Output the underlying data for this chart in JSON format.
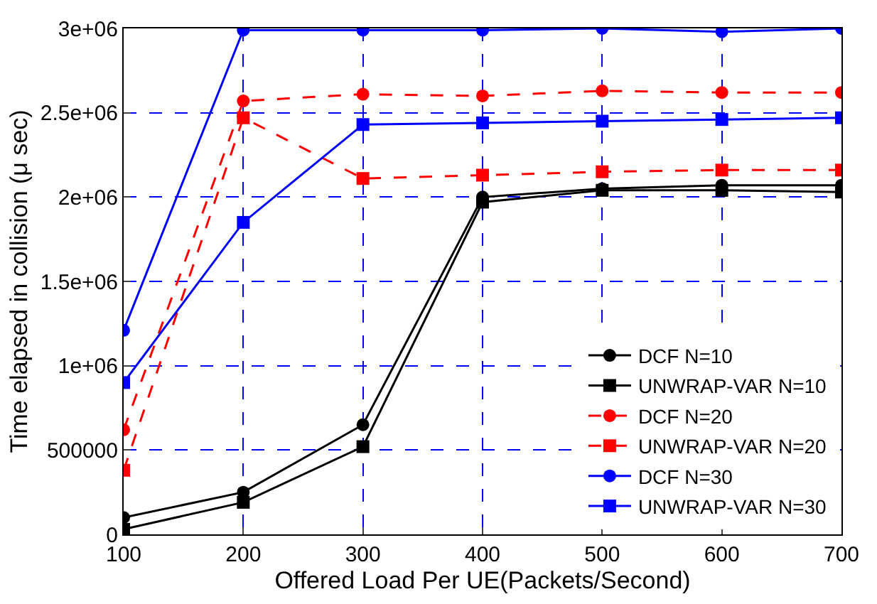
{
  "chart_data": {
    "type": "line",
    "xlabel": "Offered Load Per UE(Packets/Second)",
    "ylabel": "Time elapsed in collision (μ sec)",
    "x": [
      100,
      200,
      300,
      400,
      500,
      600,
      700
    ],
    "xlim": [
      100,
      700
    ],
    "xticks": [
      100,
      200,
      300,
      400,
      500,
      600,
      700
    ],
    "ylim": [
      0,
      3000000
    ],
    "yticks": [
      0,
      500000,
      {
        "value": 1000000,
        "label": "1e+06"
      },
      {
        "value": 1500000,
        "label": "1.5e+06"
      },
      {
        "value": 2000000,
        "label": "2e+06"
      },
      {
        "value": 2500000,
        "label": "2.5e+06"
      },
      {
        "value": 3000000,
        "label": "3e+06"
      }
    ],
    "grid": true,
    "legend": "bottom right",
    "series": [
      {
        "name": "DCF N=10",
        "color": "#000000",
        "marker": "circle",
        "line_style": "solid",
        "values": [
          100000,
          250000,
          650000,
          2000000,
          2050000,
          2070000,
          2070000
        ]
      },
      {
        "name": "UNWRAP-VAR N=10",
        "color": "#000000",
        "marker": "square",
        "line_style": "solid",
        "values": [
          30000,
          190000,
          520000,
          1970000,
          2040000,
          2040000,
          2030000
        ]
      },
      {
        "name": "DCF N=20",
        "color": "#ff0000",
        "marker": "circle",
        "line_style": "dashed",
        "values": [
          620000,
          2570000,
          2610000,
          2600000,
          2630000,
          2620000,
          2620000
        ]
      },
      {
        "name": "UNWRAP-VAR N=20",
        "color": "#ff0000",
        "marker": "square",
        "line_style": "dashed",
        "values": [
          380000,
          2470000,
          2110000,
          2130000,
          2150000,
          2160000,
          2160000
        ]
      },
      {
        "name": "DCF N=30",
        "color": "#0000ff",
        "marker": "circle",
        "line_style": "solid",
        "values": [
          1210000,
          2990000,
          2990000,
          2990000,
          3000000,
          2980000,
          3000000
        ]
      },
      {
        "name": "UNWRAP-VAR N=30",
        "color": "#0000ff",
        "marker": "square",
        "line_style": "solid",
        "values": [
          900000,
          1850000,
          2430000,
          2440000,
          2450000,
          2460000,
          2470000
        ]
      }
    ]
  }
}
